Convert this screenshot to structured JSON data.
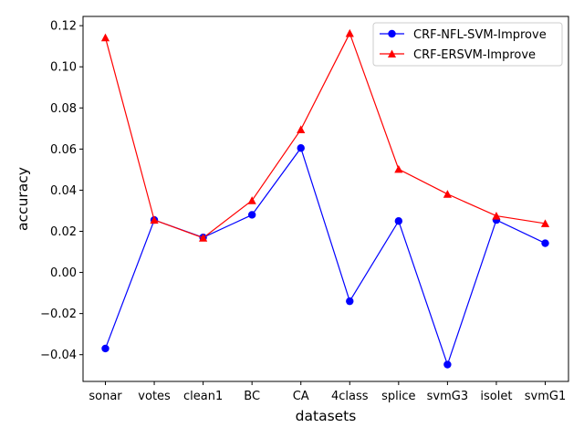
{
  "chart_data": {
    "type": "line",
    "categories": [
      "sonar",
      "votes",
      "clean1",
      "BC",
      "CA",
      "4class",
      "splice",
      "svmG3",
      "isolet",
      "svmG1"
    ],
    "series": [
      {
        "name": "CRF-NFL-SVM-Improve",
        "color": "#0000ff",
        "marker": "circle",
        "values": [
          -0.037,
          0.0255,
          0.017,
          0.028,
          0.0605,
          -0.014,
          0.025,
          -0.0448,
          0.0255,
          0.0142
        ]
      },
      {
        "name": "CRF-ERSVM-Improve",
        "color": "#ff0000",
        "marker": "triangle",
        "values": [
          0.1142,
          0.0255,
          0.0168,
          0.035,
          0.0695,
          0.1163,
          0.0502,
          0.0381,
          0.0275,
          0.0238
        ]
      }
    ],
    "xlabel": "datasets",
    "ylabel": "accuracy",
    "ylim": [
      -0.053,
      0.1245
    ],
    "yticks": [
      -0.04,
      -0.02,
      0.0,
      0.02,
      0.04,
      0.06,
      0.08,
      0.1,
      0.12
    ],
    "ytick_labels": [
      "−0.04",
      "−0.02",
      "0.00",
      "0.02",
      "0.04",
      "0.06",
      "0.08",
      "0.10",
      "0.12"
    ],
    "grid": false,
    "legend_position": "top-right"
  }
}
